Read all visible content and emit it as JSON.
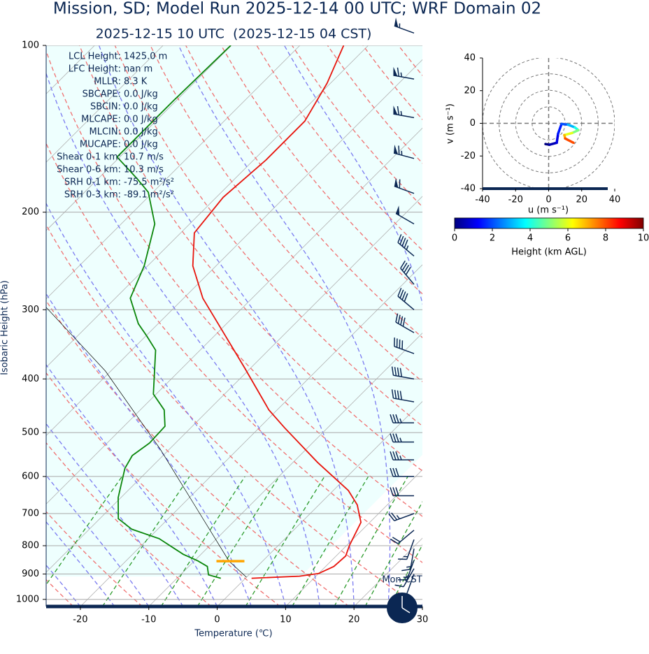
{
  "chart_data": [
    {
      "type": "skewt",
      "title": "Mission, SD; Model Run 2025-12-14 00 UTC; WRF Domain 02",
      "subtitle": "2025-12-15 10 UTC  (2025-12-15 04 CST)",
      "xlabel": "Temperature (℃)",
      "ylabel": "Isobaric Height (hPa)",
      "xlim": [
        -25,
        30
      ],
      "ylim": [
        1030,
        100
      ],
      "ylog": true,
      "xticks": [
        -20,
        -10,
        0,
        10,
        20,
        30
      ],
      "yticks": [
        100,
        200,
        300,
        400,
        500,
        600,
        700,
        800,
        900,
        1000
      ],
      "grid": true,
      "temperature": {
        "color": "#e8140c",
        "p": [
          916,
          908,
          898,
          872,
          835,
          799,
          726,
          675,
          636,
          566,
          490,
          455,
          382,
          286,
          250,
          218,
          188,
          161,
          137,
          117,
          100
        ],
        "t": [
          0.9,
          7.6,
          10,
          11.2,
          11.4,
          10.4,
          8.7,
          5.6,
          2.2,
          -6.4,
          -16.3,
          -21.2,
          -30.9,
          -47.2,
          -53.4,
          -58,
          -59,
          -58.2,
          -58.2,
          -60.5,
          -63.6
        ]
      },
      "dewpoint": {
        "color": "#0a860a",
        "p": [
          916,
          903,
          872,
          852,
          829,
          777,
          747,
          715,
          655,
          580,
          550,
          522,
          487,
          455,
          426,
          355,
          335,
          318,
          286,
          250,
          210,
          184,
          174,
          159,
          126,
          100
        ],
        "t": [
          -3.6,
          -5.9,
          -7.3,
          -9.5,
          -12.6,
          -18.4,
          -23.8,
          -27.3,
          -30.4,
          -33.7,
          -34.5,
          -33.8,
          -34,
          -36.5,
          -40.4,
          -46.5,
          -49.8,
          -52.9,
          -57.8,
          -60.5,
          -65.1,
          -70.7,
          -74.3,
          -80.4,
          -80.4,
          -80.1
        ]
      },
      "parcel": {
        "color": "#000000",
        "p": [
          912,
          853,
          675,
          535,
          387,
          296
        ],
        "t": [
          0,
          -4.9,
          -18.2,
          -31.4,
          -50.8,
          -69
        ]
      },
      "lcl": {
        "color": "#ffa500",
        "p": 853,
        "t": -4.7
      },
      "wind_barbs": {
        "color": "#0b2753",
        "p": [
          95,
          115,
          135,
          160,
          185,
          210,
          240,
          270,
          300,
          330,
          360,
          400,
          440,
          480,
          520,
          560,
          600,
          650,
          700,
          750,
          780,
          810,
          850,
          880,
          900
        ],
        "speed": [
          55,
          65,
          65,
          65,
          60,
          50,
          45,
          40,
          40,
          40,
          40,
          40,
          40,
          35,
          35,
          35,
          30,
          30,
          25,
          20,
          15,
          15,
          15,
          10,
          10
        ],
        "direction": [
          290,
          280,
          280,
          285,
          290,
          300,
          310,
          320,
          310,
          300,
          290,
          280,
          280,
          270,
          270,
          270,
          270,
          270,
          250,
          230,
          200,
          190,
          200,
          210,
          200
        ]
      },
      "parameters": [
        {
          "label": "LCL Height:",
          "value": "1425.0 m"
        },
        {
          "label": "LFC Height:",
          "value": "nan m"
        },
        {
          "label": "MLLR:",
          "value": "8.3 K"
        },
        {
          "label": "SBCAPE:",
          "value": "0.0 J/kg"
        },
        {
          "label": "SBCIN:",
          "value": "0.0 J/kg"
        },
        {
          "label": "MLCAPE:",
          "value": "0.0 J/kg"
        },
        {
          "label": "MLCIN:",
          "value": "0.0 J/kg"
        },
        {
          "label": "MUCAPE:",
          "value": "0.0 J/kg"
        },
        {
          "label": "Shear 0-1 km:",
          "value": "10.7 m/s"
        },
        {
          "label": "Shear 0-6 km:",
          "value": "10.3 m/s"
        },
        {
          "label": "SRH 0-1 km:",
          "value": "-75.5 m²/s²"
        },
        {
          "label": "SRH 0-3 km:",
          "value": "-89.1 m²/s²"
        }
      ],
      "time_label": "Mon-CST"
    },
    {
      "type": "hodograph",
      "xlabel": "u (m s⁻¹)",
      "ylabel": "v (m s⁻¹)",
      "xlim": [
        -40,
        40
      ],
      "ylim": [
        -40,
        40
      ],
      "xticks": [
        -40,
        -20,
        0,
        20,
        40
      ],
      "yticks": [
        -40,
        -20,
        0,
        20,
        40
      ],
      "u": [
        -1.9,
        0.6,
        4.9,
        5.7,
        7.8,
        11.7,
        15.9,
        18,
        14.2,
        9.5,
        10,
        15
      ],
      "v": [
        -12.7,
        -13.1,
        -11.9,
        -6.4,
        -0.4,
        -0.8,
        -2.5,
        -4.2,
        -5.9,
        -7.2,
        -9.3,
        -11.9
      ],
      "height": [
        0,
        0.5,
        1,
        1.5,
        2,
        3,
        4,
        5,
        6,
        7,
        8,
        9
      ],
      "colorbar": {
        "label": "Height (km AGL)",
        "lim": [
          0,
          10
        ],
        "ticks": [
          0,
          2,
          4,
          6,
          8,
          10
        ]
      }
    }
  ]
}
